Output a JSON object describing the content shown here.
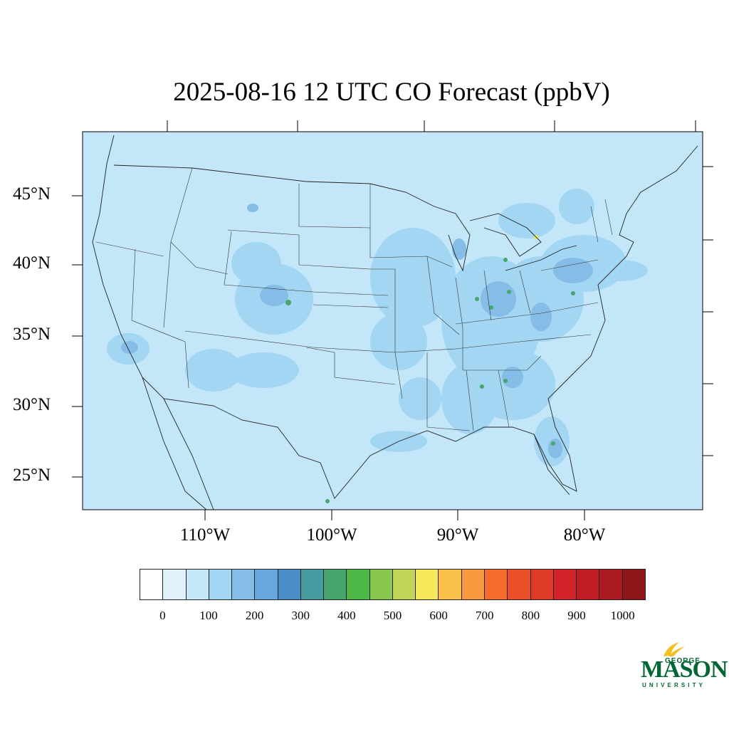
{
  "title": "2025-08-16 12 UTC CO Forecast (ppbV)",
  "map": {
    "lat_labels": [
      "45°N",
      "40°N",
      "35°N",
      "30°N",
      "25°N"
    ],
    "lon_labels": [
      "110°W",
      "100°W",
      "90°W",
      "80°W"
    ]
  },
  "colorbar": {
    "colors": [
      "#ffffff",
      "#dff2fb",
      "#c3e6f8",
      "#a3d6f3",
      "#85bde6",
      "#68a7db",
      "#4a8dc9",
      "#479b9e",
      "#46a66e",
      "#4db848",
      "#89c64d",
      "#c2d657",
      "#f7e859",
      "#f9c04a",
      "#f8983f",
      "#f46b2b",
      "#eb5029",
      "#de3a26",
      "#d2222a",
      "#c11d25",
      "#aa1a1f",
      "#8e161a"
    ],
    "labels": [
      "0",
      "100",
      "200",
      "300",
      "400",
      "500",
      "600",
      "700",
      "800",
      "900",
      "1000"
    ]
  },
  "logo": {
    "george": "GEORGE",
    "mason": "MASON",
    "university": "UNIVERSITY",
    "color": "#006633"
  }
}
